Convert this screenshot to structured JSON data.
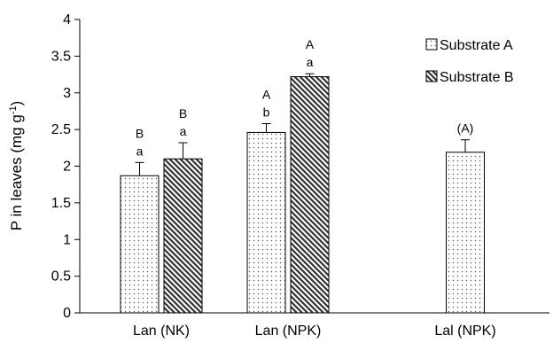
{
  "chart_data": {
    "type": "bar",
    "ylabel": "P in leaves (mg g",
    "ylabel_sup": "-1",
    "ylabel_close": ")",
    "ylim": [
      0,
      4
    ],
    "yticks": [
      "0",
      "0.5",
      "1",
      "1.5",
      "2",
      "2.5",
      "3",
      "3.5",
      "4"
    ],
    "categories": [
      "Lan (NK)",
      "Lan (NPK)",
      "Lal (NPK)"
    ],
    "legend_position": "top-right",
    "grid": false,
    "series": [
      {
        "name": "Substrate A",
        "pattern": "dots",
        "values": [
          1.87,
          2.46,
          2.19
        ],
        "errors": [
          0.18,
          0.12,
          0.17
        ],
        "annotations": [
          [
            "B",
            "a"
          ],
          [
            "A",
            "b"
          ],
          [
            "(A)"
          ]
        ]
      },
      {
        "name": "Substrate B",
        "pattern": "hatch",
        "values": [
          2.1,
          3.22,
          null
        ],
        "errors": [
          0.22,
          0.04,
          null
        ],
        "annotations": [
          [
            "B",
            "a"
          ],
          [
            "A",
            "a"
          ],
          []
        ]
      }
    ]
  }
}
